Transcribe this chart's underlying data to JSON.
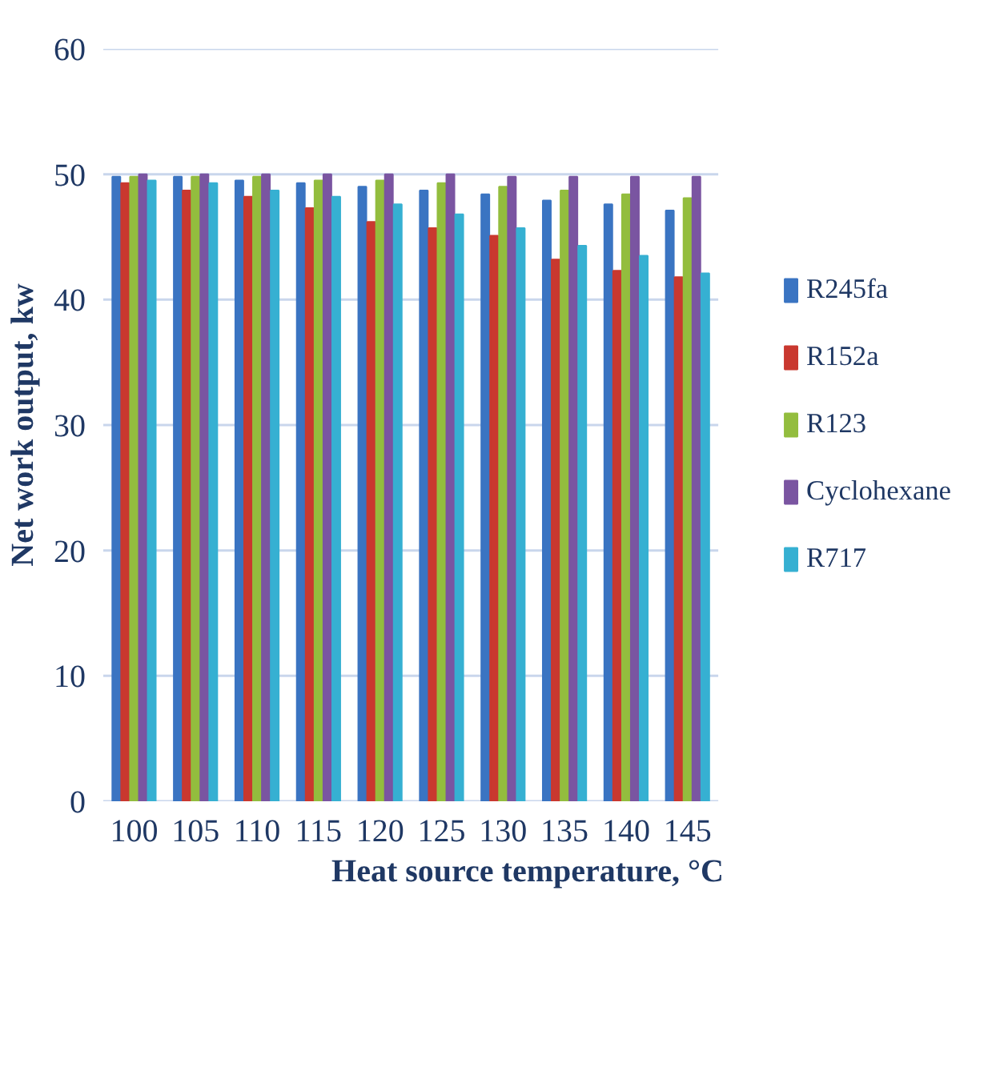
{
  "chart_data": {
    "type": "bar",
    "xlabel": "Heat source temperature, °C",
    "ylabel": "Net work output, kw",
    "categories": [
      "100",
      "105",
      "110",
      "115",
      "120",
      "125",
      "130",
      "135",
      "140",
      "145"
    ],
    "series": [
      {
        "name": "R245fa",
        "color": "#3a74c2",
        "values": [
          49.8,
          49.8,
          49.5,
          49.3,
          49.0,
          48.7,
          48.4,
          47.9,
          47.6,
          47.1
        ]
      },
      {
        "name": "R152a",
        "color": "#c9382f",
        "values": [
          49.3,
          48.7,
          48.2,
          47.3,
          46.2,
          45.7,
          45.1,
          43.2,
          42.3,
          41.8
        ]
      },
      {
        "name": "R123",
        "color": "#93bd3e",
        "values": [
          49.8,
          49.8,
          49.8,
          49.5,
          49.5,
          49.3,
          49.0,
          48.7,
          48.4,
          48.1
        ]
      },
      {
        "name": "Cyclohexane",
        "color": "#7a55a1",
        "values": [
          50,
          50,
          50,
          50,
          50,
          50,
          49.8,
          49.8,
          49.8,
          49.8
        ]
      },
      {
        "name": "R717",
        "color": "#36b0d2",
        "values": [
          49.5,
          49.3,
          48.7,
          48.2,
          47.6,
          46.8,
          45.7,
          44.3,
          43.5,
          42.1
        ]
      }
    ],
    "ylim": [
      0,
      60
    ],
    "yticks": [
      0,
      10,
      20,
      30,
      40,
      50,
      60
    ],
    "grid": "y",
    "legend": "right"
  }
}
